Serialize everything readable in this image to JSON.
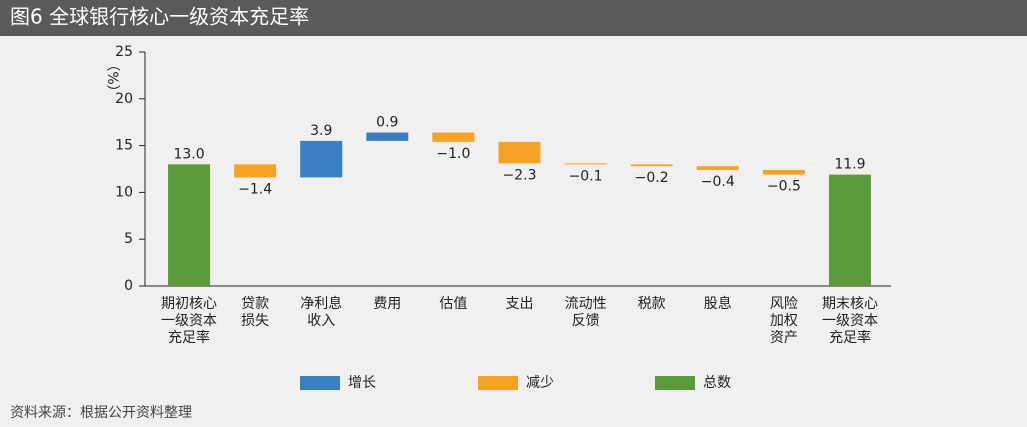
{
  "chart_data": {
    "type": "waterfall",
    "title": "图6  全球银行核心一级资本充足率",
    "y_label": "（%）",
    "categories": [
      "期初核心一级资本充足率",
      "贷款损失",
      "净利息收入",
      "费用",
      "估值",
      "支出",
      "流动性反馈",
      "税款",
      "股息",
      "风险加权资产",
      "期末核心一级资本充足率"
    ],
    "values": [
      13,
      -1.4,
      3.9,
      0.9,
      -1,
      -2.3,
      -0.1,
      -0.2,
      -0.4,
      -0.5,
      11.9
    ],
    "value_labels": [
      "13.0",
      "−1.4",
      "3.9",
      "0.9",
      "−1.0",
      "−2.3",
      "−0.1",
      "−0.2",
      "−0.4",
      "−0.5",
      "11.9"
    ],
    "legend": [
      {
        "name": "增长",
        "color": "#3a7fc1"
      },
      {
        "name": "减少",
        "color": "#f5a229"
      },
      {
        "name": "总数",
        "color": "#5b9a3d"
      }
    ],
    "ylim": [
      0,
      25
    ],
    "yticks": [
      0,
      5,
      10,
      15,
      20,
      25
    ],
    "grid": false,
    "source": "资料来源：根据公开资料整理"
  }
}
